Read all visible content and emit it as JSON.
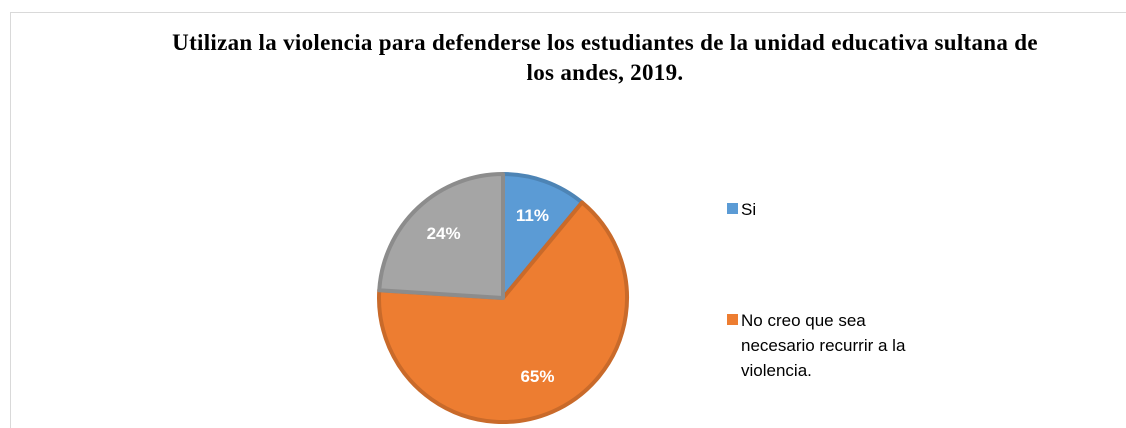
{
  "chart_data": {
    "type": "pie",
    "title": "Utilizan la violencia para defenderse los estudiantes de la unidad educativa sultana de los andes, 2019.",
    "categories": [
      "Si",
      "No creo que sea necesario recurrir a la violencia.",
      null
    ],
    "values": [
      11,
      65,
      24
    ],
    "value_labels": [
      "11%",
      "65%",
      "24%"
    ],
    "colors": [
      "#5b9bd5",
      "#ed7d31",
      "#a5a5a5"
    ]
  }
}
